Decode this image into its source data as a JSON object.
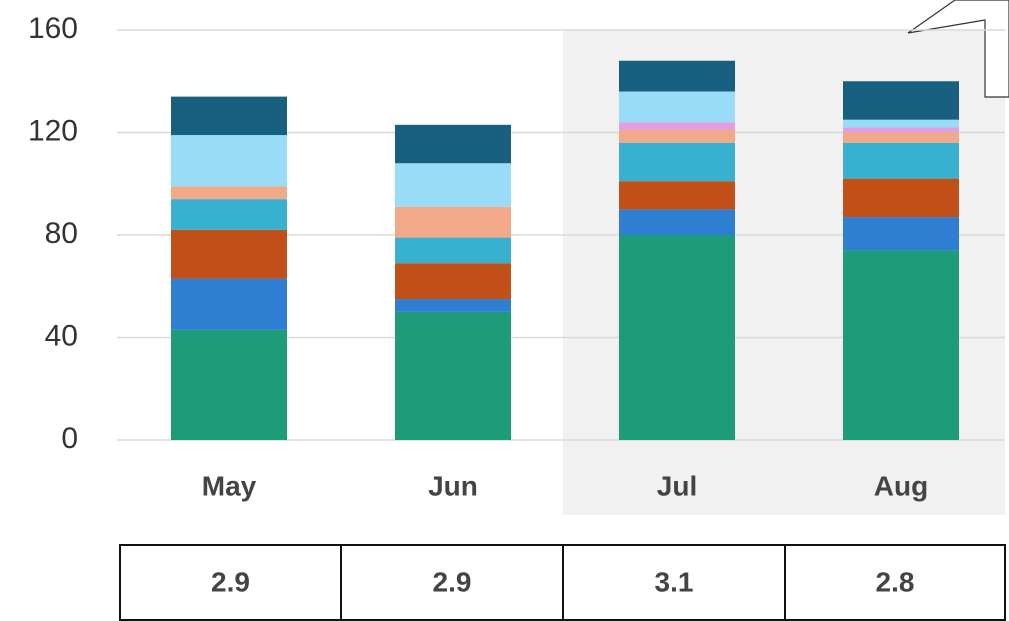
{
  "chart_data": {
    "type": "stacked_bar",
    "categories": [
      "May",
      "Jun",
      "Jul",
      "Aug"
    ],
    "series": [
      {
        "color": "#1e9c7a",
        "values": [
          43,
          50,
          80,
          74
        ]
      },
      {
        "color": "#2e7fd1",
        "values": [
          20,
          5,
          10,
          13
        ]
      },
      {
        "color": "#c05018",
        "values": [
          19,
          14,
          11,
          15
        ]
      },
      {
        "color": "#38b0d0",
        "values": [
          12,
          10,
          15,
          14
        ]
      },
      {
        "color": "#f2a98a",
        "values": [
          5,
          12,
          5,
          4
        ]
      },
      {
        "color": "#e39ee0",
        "values": [
          0,
          0,
          3,
          2
        ]
      },
      {
        "color": "#99dcf8",
        "values": [
          20,
          17,
          12,
          3
        ]
      },
      {
        "color": "#17607f",
        "values": [
          15,
          15,
          12,
          15
        ]
      }
    ],
    "ylim": [
      0,
      160
    ],
    "yticks": [
      0,
      40,
      80,
      120,
      160
    ],
    "grid": true
  },
  "table": {
    "values": [
      2.9,
      2.9,
      3.1,
      2.8
    ]
  }
}
